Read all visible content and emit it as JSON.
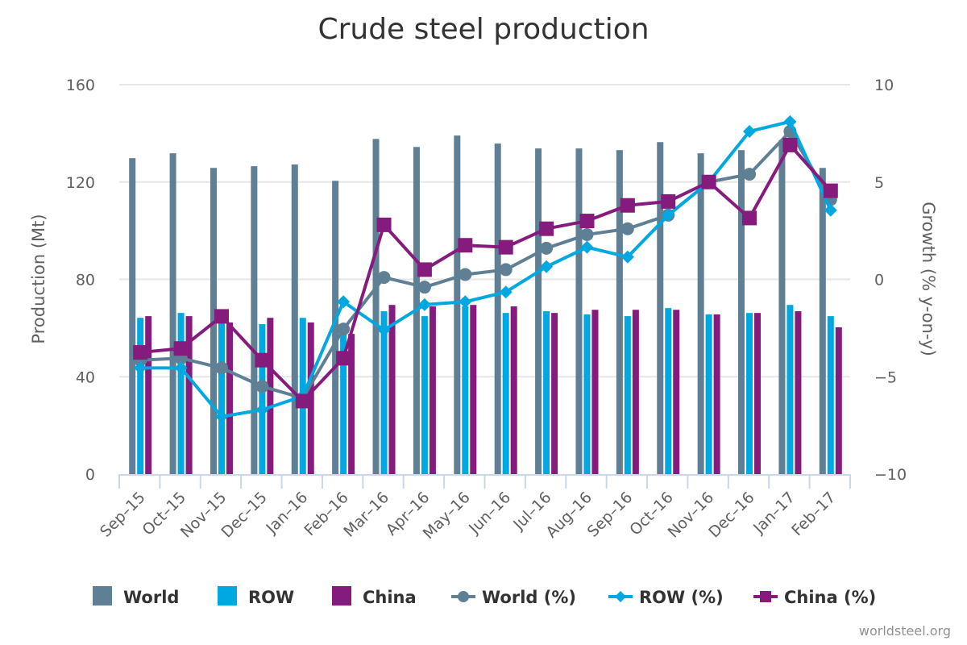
{
  "chart_data": {
    "type": "bar+line",
    "title": "Crude steel production",
    "xlabel": "",
    "ylabel": "Production (Mt)",
    "y2label": "Growth (% y-on-y)",
    "ylim": [
      0,
      160
    ],
    "y2lim": [
      -10,
      10
    ],
    "yticks": [
      "0",
      "40",
      "80",
      "120",
      "160"
    ],
    "y2ticks": [
      "−10",
      "−5",
      "0",
      "5",
      "10"
    ],
    "ytick_values": [
      0,
      40,
      80,
      120,
      160
    ],
    "y2tick_values": [
      -10,
      -5,
      0,
      5,
      10
    ],
    "grid": true,
    "legend_position": "bottom",
    "categories": [
      "Sep-15",
      "Oct-15",
      "Nov-15",
      "Dec-15",
      "Jan-16",
      "Feb-16",
      "Mar-16",
      "Apr-16",
      "May-16",
      "Jun-16",
      "Jul-16",
      "Aug-16",
      "Sep-16",
      "Oct-16",
      "Nov-16",
      "Dec-16",
      "Jan-17",
      "Feb-17"
    ],
    "category_labels": [
      "Sep–15",
      "Oct–15",
      "Nov–15",
      "Dec–15",
      "Jan–16",
      "Feb–16",
      "Mar–16",
      "Apr–16",
      "May–16",
      "Jun–16",
      "Jul–16",
      "Aug–16",
      "Sep–16",
      "Oct–16",
      "Nov–16",
      "Dec–16",
      "Jan–17",
      "Feb–17"
    ],
    "bar_series": [
      {
        "name": "World",
        "color": "#5f7f94",
        "axis": "left",
        "values": [
          129.8,
          131.8,
          125.8,
          126.5,
          127.2,
          120.5,
          137.7,
          134.4,
          139.1,
          135.8,
          133.8,
          133.8,
          133.1,
          136.4,
          131.8,
          133.1,
          137.2,
          125.8
        ]
      },
      {
        "name": "ROW",
        "color": "#00a8e1",
        "axis": "left",
        "values": [
          64.2,
          66.2,
          63.0,
          61.6,
          64.2,
          58.0,
          66.9,
          64.9,
          68.9,
          66.2,
          66.9,
          65.6,
          64.9,
          68.2,
          65.6,
          66.2,
          69.5,
          64.9
        ]
      },
      {
        "name": "China",
        "color": "#861b7e",
        "axis": "left",
        "values": [
          64.9,
          64.9,
          62.3,
          64.2,
          62.3,
          57.6,
          69.5,
          68.9,
          69.5,
          68.9,
          66.2,
          67.5,
          67.5,
          67.5,
          65.6,
          66.2,
          66.9,
          60.3
        ]
      }
    ],
    "line_series": [
      {
        "name": "World (%)",
        "color": "#5f7f94",
        "marker": "circle",
        "axis": "right",
        "values": [
          -4.15,
          -4.05,
          -4.55,
          -5.5,
          -6.1,
          -2.55,
          0.1,
          -0.4,
          0.25,
          0.5,
          1.6,
          2.3,
          2.6,
          3.3,
          5.0,
          5.4,
          7.6,
          4.1
        ]
      },
      {
        "name": "ROW (%)",
        "color": "#00a8e1",
        "marker": "diamond",
        "axis": "right",
        "values": [
          -4.55,
          -4.55,
          -7.05,
          -6.7,
          -6.0,
          -1.15,
          -2.6,
          -1.3,
          -1.15,
          -0.65,
          0.65,
          1.65,
          1.15,
          3.3,
          5.0,
          7.6,
          8.1,
          3.55
        ]
      },
      {
        "name": "China (%)",
        "color": "#861b7e",
        "marker": "square",
        "axis": "right",
        "values": [
          -3.75,
          -3.55,
          -1.9,
          -4.15,
          -6.25,
          -4.05,
          2.8,
          0.5,
          1.75,
          1.65,
          2.6,
          3.0,
          3.8,
          4.0,
          5.0,
          3.15,
          6.9,
          4.55
        ]
      }
    ],
    "legend": [
      "World",
      "ROW",
      "China",
      "World (%)",
      "ROW (%)",
      "China (%)"
    ],
    "credit": "worldsteel.org"
  }
}
